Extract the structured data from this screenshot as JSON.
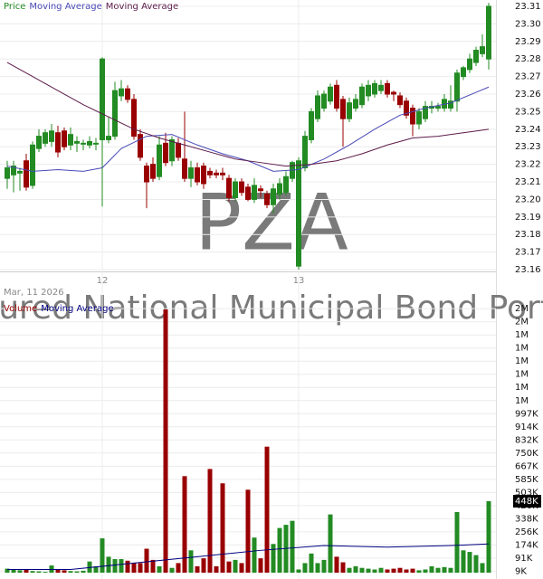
{
  "date": "Mar, 11 2026",
  "watermark": {
    "symbol": "PZA",
    "name": "Insured National Municipal Bond Portfolio"
  },
  "chart_data": [
    {
      "type": "candlestick",
      "name": "Price",
      "up_color": "#238b23",
      "down_color": "#990000",
      "categories": [
        null,
        null,
        null,
        null,
        null,
        null,
        null,
        null,
        null,
        null,
        null,
        null,
        null,
        null,
        null,
        "12",
        null,
        null,
        null,
        null,
        null,
        null,
        null,
        null,
        null,
        null,
        null,
        null,
        null,
        null,
        null,
        null,
        null,
        null,
        null,
        null,
        null,
        null,
        null,
        null,
        null,
        null,
        null,
        null,
        null,
        null,
        "13",
        null,
        null,
        null,
        null,
        null,
        null,
        null,
        null,
        null,
        null,
        null,
        null,
        null,
        null,
        null,
        null,
        null,
        null,
        null,
        null,
        null,
        null,
        null,
        null,
        null,
        null,
        null,
        null,
        null,
        null
      ],
      "ohlc": [
        [
          23.212,
          23.222,
          23.206,
          23.218
        ],
        [
          23.214,
          23.222,
          23.204,
          23.219
        ],
        [
          23.215,
          23.218,
          23.205,
          23.216
        ],
        [
          23.222,
          23.226,
          23.205,
          23.207
        ],
        [
          23.208,
          23.233,
          23.206,
          23.231
        ],
        [
          23.229,
          23.24,
          23.227,
          23.236
        ],
        [
          23.232,
          23.24,
          23.23,
          23.238
        ],
        [
          23.233,
          23.243,
          23.23,
          23.239
        ],
        [
          23.238,
          23.242,
          23.224,
          23.227
        ],
        [
          23.239,
          23.241,
          23.228,
          23.23
        ],
        [
          23.231,
          23.241,
          23.228,
          23.237
        ],
        [
          23.232,
          23.236,
          23.227,
          23.233
        ],
        [
          23.232,
          23.234,
          23.228,
          23.232
        ],
        [
          23.231,
          23.236,
          23.229,
          23.233
        ],
        [
          23.232,
          23.235,
          23.228,
          23.232
        ],
        [
          23.234,
          23.281,
          23.196,
          23.28
        ],
        [
          23.234,
          23.247,
          23.232,
          23.236
        ],
        [
          23.236,
          23.267,
          23.234,
          23.262
        ],
        [
          23.259,
          23.268,
          23.256,
          23.263
        ],
        [
          23.263,
          23.265,
          23.255,
          23.257
        ],
        [
          23.257,
          23.26,
          23.234,
          23.236
        ],
        [
          23.237,
          23.24,
          23.222,
          23.224
        ],
        [
          23.219,
          23.221,
          23.195,
          23.21
        ],
        [
          23.22,
          23.224,
          23.21,
          23.212
        ],
        [
          23.213,
          23.236,
          23.211,
          23.231
        ],
        [
          23.232,
          23.238,
          23.219,
          23.221
        ],
        [
          23.222,
          23.236,
          23.219,
          23.234
        ],
        [
          23.232,
          23.235,
          23.222,
          23.224
        ],
        [
          23.223,
          23.25,
          23.21,
          23.212
        ],
        [
          23.212,
          23.222,
          23.207,
          23.218
        ],
        [
          23.218,
          23.221,
          23.208,
          23.21
        ],
        [
          23.219,
          23.221,
          23.206,
          23.209
        ],
        [
          23.216,
          23.218,
          23.212,
          23.214
        ],
        [
          23.215,
          23.217,
          23.212,
          23.214
        ],
        [
          23.215,
          23.218,
          23.211,
          23.214
        ],
        [
          23.212,
          23.214,
          23.199,
          23.201
        ],
        [
          23.201,
          23.212,
          23.199,
          23.21
        ],
        [
          23.21,
          23.212,
          23.202,
          23.204
        ],
        [
          23.207,
          23.209,
          23.199,
          23.2
        ],
        [
          23.2,
          23.212,
          23.198,
          23.208
        ],
        [
          23.206,
          23.208,
          23.201,
          23.205
        ],
        [
          23.203,
          23.205,
          23.195,
          23.197
        ],
        [
          23.197,
          23.209,
          23.192,
          23.206
        ],
        [
          23.203,
          23.212,
          23.2,
          23.209
        ],
        [
          23.204,
          23.216,
          23.202,
          23.213
        ],
        [
          23.212,
          23.222,
          23.21,
          23.221
        ],
        [
          23.162,
          23.224,
          23.16,
          23.222
        ],
        [
          23.218,
          23.239,
          23.216,
          23.236
        ],
        [
          23.234,
          23.252,
          23.232,
          23.25
        ],
        [
          23.246,
          23.262,
          23.244,
          23.259
        ],
        [
          23.252,
          23.262,
          23.25,
          23.26
        ],
        [
          23.256,
          23.266,
          23.254,
          23.264
        ],
        [
          23.265,
          23.268,
          23.25,
          23.252
        ],
        [
          23.257,
          23.259,
          23.23,
          23.246
        ],
        [
          23.246,
          23.258,
          23.244,
          23.255
        ],
        [
          23.252,
          23.26,
          23.25,
          23.257
        ],
        [
          23.254,
          23.266,
          23.252,
          23.264
        ],
        [
          23.259,
          23.268,
          23.256,
          23.265
        ],
        [
          23.26,
          23.268,
          23.258,
          23.266
        ],
        [
          23.262,
          23.268,
          23.26,
          23.265
        ],
        [
          23.266,
          23.268,
          23.258,
          23.26
        ],
        [
          23.261,
          23.262,
          23.256,
          23.26
        ],
        [
          23.259,
          23.261,
          23.252,
          23.254
        ],
        [
          23.256,
          23.258,
          23.246,
          23.248
        ],
        [
          23.252,
          23.254,
          23.236,
          23.243
        ],
        [
          23.243,
          23.252,
          23.24,
          23.25
        ],
        [
          23.246,
          23.256,
          23.244,
          23.253
        ],
        [
          23.252,
          23.256,
          23.249,
          23.253
        ],
        [
          23.252,
          23.255,
          23.25,
          23.253
        ],
        [
          23.252,
          23.26,
          23.25,
          23.257
        ],
        [
          23.252,
          23.265,
          23.25,
          23.256
        ],
        [
          23.256,
          23.274,
          23.25,
          23.272
        ],
        [
          23.27,
          23.276,
          23.268,
          23.275
        ],
        [
          23.274,
          23.283,
          23.272,
          23.28
        ],
        [
          23.278,
          23.287,
          23.276,
          23.285
        ],
        [
          23.283,
          23.294,
          23.281,
          23.287
        ],
        [
          23.28,
          23.312,
          23.274,
          23.31
        ]
      ],
      "ylim": [
        23.159,
        23.3136
      ],
      "yticks": [
        23.31,
        {
          "value": 23.3,
          "label": "23.30"
        },
        23.29,
        23.28,
        23.27,
        23.26,
        23.25,
        23.24,
        23.23,
        23.22,
        23.21,
        {
          "value": 23.2,
          "label": "23.20"
        },
        23.19,
        23.18,
        23.17,
        23.16
      ],
      "grid": true,
      "series": [
        {
          "name": "Moving Average",
          "color": "#4a4ab8",
          "x": [
            0,
            4,
            8,
            12,
            15,
            18,
            22,
            26,
            30,
            34,
            38,
            42,
            46,
            50,
            54,
            58,
            62,
            66,
            70,
            74,
            76
          ],
          "values": [
            23.219,
            23.216,
            23.217,
            23.216,
            23.218,
            23.229,
            23.236,
            23.237,
            23.231,
            23.226,
            23.222,
            23.216,
            23.217,
            23.223,
            23.231,
            23.24,
            23.248,
            23.252,
            23.255,
            23.261,
            23.264
          ]
        },
        {
          "name": "Moving Average",
          "color": "#5c1a4a",
          "x": [
            0,
            4,
            8,
            12,
            16,
            20,
            24,
            28,
            32,
            36,
            40,
            44,
            48,
            52,
            56,
            60,
            64,
            68,
            72,
            76
          ],
          "values": [
            23.278,
            23.27,
            23.262,
            23.254,
            23.247,
            23.24,
            23.235,
            23.231,
            23.227,
            23.223,
            23.221,
            23.219,
            23.22,
            23.222,
            23.226,
            23.231,
            23.235,
            23.236,
            23.238,
            23.24
          ]
        }
      ]
    },
    {
      "type": "bar",
      "name": "Volume",
      "color": "#990000",
      "values": [
        25000,
        20000,
        15000,
        20000,
        10000,
        8000,
        5000,
        45000,
        20000,
        15000,
        10000,
        8000,
        12000,
        70000,
        40000,
        215000,
        100000,
        85000,
        85000,
        75000,
        60000,
        60000,
        150000,
        80000,
        40000,
        1650000,
        30000,
        60000,
        605000,
        140000,
        40000,
        90000,
        650000,
        40000,
        560000,
        70000,
        80000,
        60000,
        520000,
        220000,
        90000,
        790000,
        180000,
        280000,
        300000,
        325000,
        20000,
        60000,
        120000,
        60000,
        80000,
        365000,
        100000,
        65000,
        30000,
        40000,
        30000,
        25000,
        20000,
        30000,
        20000,
        25000,
        30000,
        20000,
        25000,
        15000,
        20000,
        40000,
        30000,
        35000,
        30000,
        380000,
        140000,
        130000,
        110000,
        60000,
        448000
      ],
      "ylim": [
        0,
        1690000
      ],
      "yticks": [
        {
          "value": 9000,
          "label": "9K"
        },
        {
          "value": 91300,
          "label": "91K"
        },
        {
          "value": 173600,
          "label": "174K"
        },
        {
          "value": 255900,
          "label": "256K"
        },
        {
          "value": 338200,
          "label": "338K"
        },
        {
          "value": 420500,
          "label": "420K"
        },
        {
          "value": 502800,
          "label": "503K"
        },
        {
          "value": 585100,
          "label": "585K"
        },
        {
          "value": 667400,
          "label": "667K"
        },
        {
          "value": 749700,
          "label": "750K"
        },
        {
          "value": 832000,
          "label": "832K"
        },
        {
          "value": 914300,
          "label": "914K"
        },
        {
          "value": 996600,
          "label": "997K"
        },
        {
          "value": 1078900,
          "label": "1M"
        },
        {
          "value": 1161200,
          "label": "1M"
        },
        {
          "value": 1243500,
          "label": "1M"
        },
        {
          "value": 1325800,
          "label": "1M"
        },
        {
          "value": 1408100,
          "label": "1M"
        },
        {
          "value": 1490400,
          "label": "1M"
        },
        {
          "value": 1572700,
          "label": "2M"
        },
        {
          "value": 1655000,
          "label": "2M"
        }
      ],
      "last_value": {
        "value": 448000,
        "label": "448K"
      },
      "grid": true,
      "series": [
        {
          "name": "Moving Average",
          "color": "#000080",
          "x": [
            0,
            10,
            20,
            30,
            40,
            50,
            60,
            70,
            76
          ],
          "values": [
            20000,
            20000,
            60000,
            100000,
            140000,
            170000,
            160000,
            170000,
            180000
          ]
        }
      ]
    }
  ]
}
